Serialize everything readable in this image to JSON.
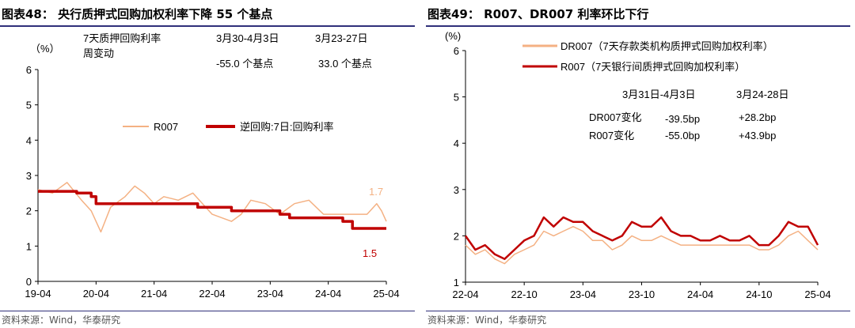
{
  "left": {
    "title": "图表48：  央行质押式回购加权利率下降 55 个基点",
    "source": "资料来源：Wind，华泰研究",
    "unit": "（%）",
    "notes": {
      "row_label_1": "7天质押回购利率",
      "row_label_2": "周变动",
      "col1_header": "3月30-4月3日",
      "col2_header": "3月23-27日",
      "col1_value": "-55.0 个基点",
      "col2_value": "33.0  个基点"
    },
    "end_labels": {
      "r007": "1.7",
      "reverse_repo": "1.5"
    }
  },
  "right": {
    "title": "图表49：  R007、DR007 利率环比下行",
    "source": "资料来源：Wind，华泰研究",
    "unit": "(%)",
    "notes": {
      "col1_header": "3月31日-4月3日",
      "col2_header": "3月24-28日",
      "row1_label": "DR007变化",
      "row2_label": "R007变化",
      "row1_col1": "-39.5bp",
      "row1_col2": "+28.2bp",
      "row2_col1": "-55.0bp",
      "row2_col2": "+43.9bp"
    }
  },
  "chart_data": [
    {
      "type": "line",
      "title": "央行质押式回购加权利率下降 55 个基点",
      "ylabel": "（%）",
      "ylim": [
        0,
        6
      ],
      "yticks": [
        "0",
        "1",
        "2",
        "3",
        "4",
        "5",
        "6"
      ],
      "xlim": [
        "2019-04",
        "2025-04"
      ],
      "xticks": [
        "19-04",
        "20-04",
        "21-04",
        "22-04",
        "23-04",
        "24-04",
        "25-04"
      ],
      "legend_position": "middle",
      "series": [
        {
          "name": "R007",
          "color": "#F4B183",
          "points": [
            [
              "2019-04",
              2.6
            ],
            [
              "2019-07",
              2.5
            ],
            [
              "2019-10",
              2.8
            ],
            [
              "2020-01",
              2.3
            ],
            [
              "2020-03",
              2.0
            ],
            [
              "2020-05",
              1.4
            ],
            [
              "2020-07",
              2.1
            ],
            [
              "2020-10",
              2.4
            ],
            [
              "2020-12",
              2.7
            ],
            [
              "2021-02",
              2.5
            ],
            [
              "2021-04",
              2.2
            ],
            [
              "2021-06",
              2.4
            ],
            [
              "2021-09",
              2.3
            ],
            [
              "2021-12",
              2.5
            ],
            [
              "2022-02",
              2.2
            ],
            [
              "2022-04",
              1.9
            ],
            [
              "2022-06",
              1.8
            ],
            [
              "2022-08",
              1.7
            ],
            [
              "2022-10",
              1.9
            ],
            [
              "2022-12",
              2.3
            ],
            [
              "2023-03",
              2.2
            ],
            [
              "2023-06",
              1.9
            ],
            [
              "2023-09",
              2.2
            ],
            [
              "2023-12",
              2.3
            ],
            [
              "2024-03",
              1.9
            ],
            [
              "2024-06",
              1.9
            ],
            [
              "2024-09",
              1.9
            ],
            [
              "2024-12",
              1.9
            ],
            [
              "2025-02",
              2.2
            ],
            [
              "2025-03",
              2.0
            ],
            [
              "2025-04",
              1.7
            ]
          ]
        },
        {
          "name": "逆回购:7日:回购利率",
          "color": "#C00000",
          "points": [
            [
              "2019-04",
              2.55
            ],
            [
              "2019-12",
              2.55
            ],
            [
              "2019-12",
              2.5
            ],
            [
              "2020-03",
              2.5
            ],
            [
              "2020-03",
              2.4
            ],
            [
              "2020-04",
              2.4
            ],
            [
              "2020-04",
              2.2
            ],
            [
              "2022-01",
              2.2
            ],
            [
              "2022-01",
              2.1
            ],
            [
              "2022-08",
              2.1
            ],
            [
              "2022-08",
              2.0
            ],
            [
              "2023-06",
              2.0
            ],
            [
              "2023-06",
              1.9
            ],
            [
              "2023-08",
              1.9
            ],
            [
              "2023-08",
              1.8
            ],
            [
              "2024-07",
              1.8
            ],
            [
              "2024-07",
              1.7
            ],
            [
              "2024-09",
              1.7
            ],
            [
              "2024-09",
              1.5
            ],
            [
              "2025-04",
              1.5
            ]
          ]
        }
      ]
    },
    {
      "type": "line",
      "title": "R007、DR007 利率环比下行",
      "ylabel": "(%)",
      "ylim": [
        1,
        6
      ],
      "yticks": [
        "1",
        "2",
        "3",
        "4",
        "5",
        "6"
      ],
      "xlim": [
        "2022-04",
        "2025-04"
      ],
      "xticks": [
        "22-04",
        "22-10",
        "23-04",
        "23-10",
        "24-04",
        "24-10",
        "25-04"
      ],
      "legend_position": "top-left",
      "series": [
        {
          "name": "DR007（7天存款类机构质押式回购加权利率）",
          "color": "#F4B183",
          "points": [
            [
              "2022-04",
              1.8
            ],
            [
              "2022-05",
              1.6
            ],
            [
              "2022-06",
              1.7
            ],
            [
              "2022-07",
              1.5
            ],
            [
              "2022-08",
              1.4
            ],
            [
              "2022-09",
              1.6
            ],
            [
              "2022-10",
              1.7
            ],
            [
              "2022-11",
              1.8
            ],
            [
              "2022-12",
              2.1
            ],
            [
              "2023-01",
              2.0
            ],
            [
              "2023-02",
              2.1
            ],
            [
              "2023-03",
              2.2
            ],
            [
              "2023-04",
              2.1
            ],
            [
              "2023-05",
              1.9
            ],
            [
              "2023-06",
              1.9
            ],
            [
              "2023-07",
              1.7
            ],
            [
              "2023-08",
              1.8
            ],
            [
              "2023-09",
              2.0
            ],
            [
              "2023-10",
              1.9
            ],
            [
              "2023-11",
              1.9
            ],
            [
              "2023-12",
              2.0
            ],
            [
              "2024-01",
              1.9
            ],
            [
              "2024-02",
              1.8
            ],
            [
              "2024-03",
              1.8
            ],
            [
              "2024-04",
              1.8
            ],
            [
              "2024-05",
              1.8
            ],
            [
              "2024-06",
              1.8
            ],
            [
              "2024-07",
              1.8
            ],
            [
              "2024-08",
              1.8
            ],
            [
              "2024-09",
              1.8
            ],
            [
              "2024-10",
              1.7
            ],
            [
              "2024-11",
              1.7
            ],
            [
              "2024-12",
              1.8
            ],
            [
              "2025-01",
              2.0
            ],
            [
              "2025-02",
              2.1
            ],
            [
              "2025-03",
              1.9
            ],
            [
              "2025-04",
              1.7
            ]
          ]
        },
        {
          "name": "R007（7天银行间质押式回购加权利率）",
          "color": "#C00000",
          "points": [
            [
              "2022-04",
              2.0
            ],
            [
              "2022-05",
              1.7
            ],
            [
              "2022-06",
              1.8
            ],
            [
              "2022-07",
              1.6
            ],
            [
              "2022-08",
              1.5
            ],
            [
              "2022-09",
              1.7
            ],
            [
              "2022-10",
              1.9
            ],
            [
              "2022-11",
              2.0
            ],
            [
              "2022-12",
              2.4
            ],
            [
              "2023-01",
              2.2
            ],
            [
              "2023-02",
              2.4
            ],
            [
              "2023-03",
              2.3
            ],
            [
              "2023-04",
              2.3
            ],
            [
              "2023-05",
              2.1
            ],
            [
              "2023-06",
              2.0
            ],
            [
              "2023-07",
              1.9
            ],
            [
              "2023-08",
              2.0
            ],
            [
              "2023-09",
              2.3
            ],
            [
              "2023-10",
              2.2
            ],
            [
              "2023-11",
              2.2
            ],
            [
              "2023-12",
              2.4
            ],
            [
              "2024-01",
              2.1
            ],
            [
              "2024-02",
              2.0
            ],
            [
              "2024-03",
              2.0
            ],
            [
              "2024-04",
              1.9
            ],
            [
              "2024-05",
              1.9
            ],
            [
              "2024-06",
              2.0
            ],
            [
              "2024-07",
              1.9
            ],
            [
              "2024-08",
              1.9
            ],
            [
              "2024-09",
              2.0
            ],
            [
              "2024-10",
              1.8
            ],
            [
              "2024-11",
              1.8
            ],
            [
              "2024-12",
              2.0
            ],
            [
              "2025-01",
              2.3
            ],
            [
              "2025-02",
              2.2
            ],
            [
              "2025-03",
              2.2
            ],
            [
              "2025-04",
              1.8
            ]
          ]
        }
      ]
    }
  ]
}
